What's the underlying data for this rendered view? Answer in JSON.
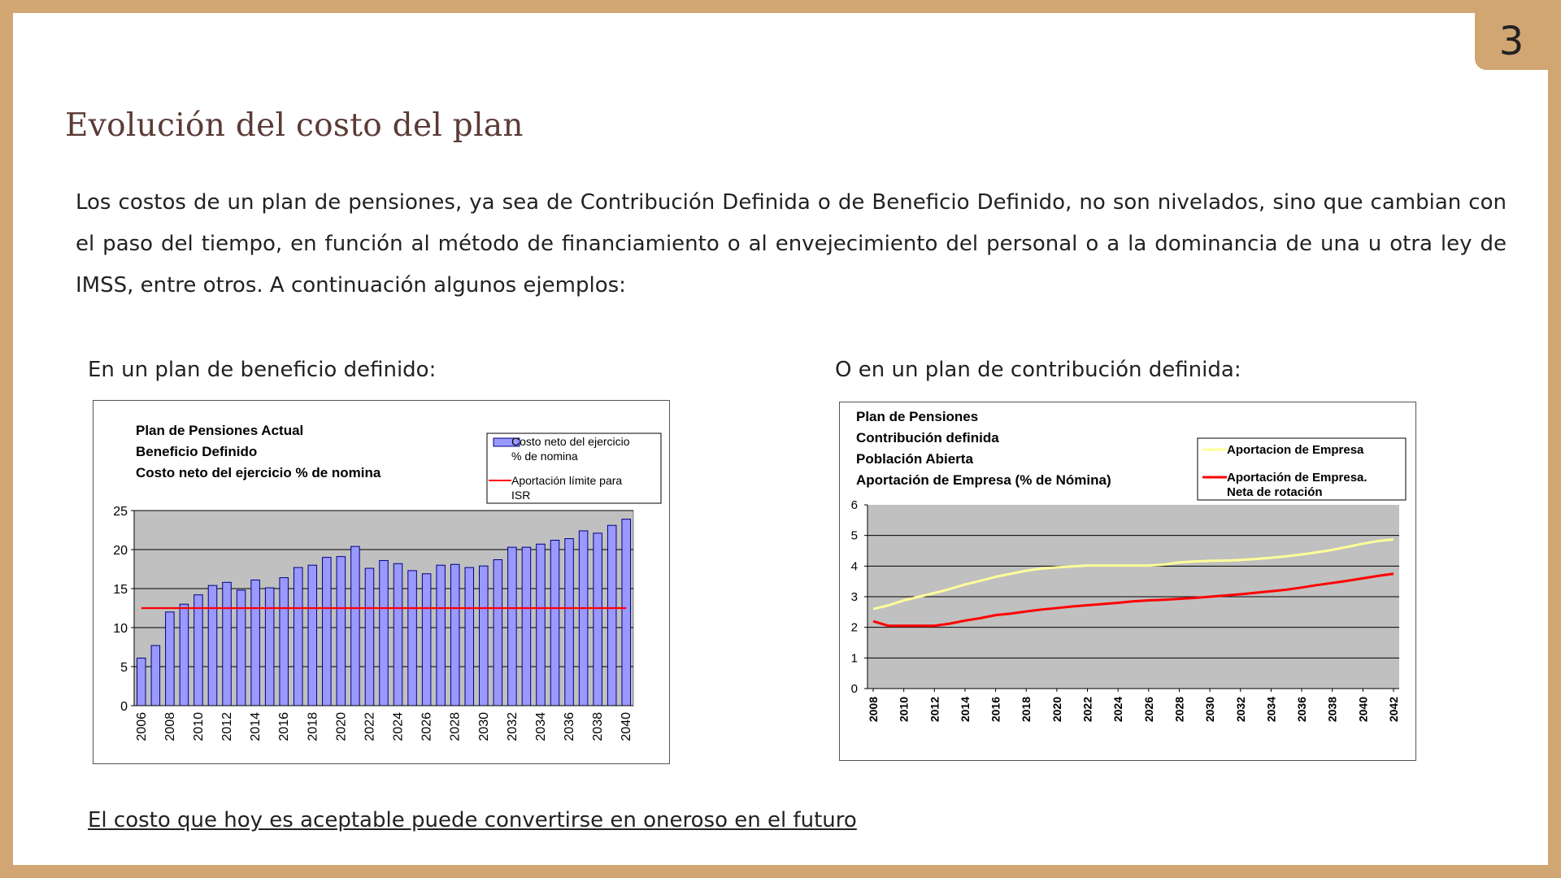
{
  "page_number": "3",
  "title": "Evolución del costo del plan",
  "intro": "Los costos de un plan de pensiones, ya sea de Contribución Definida o de Beneficio Definido, no son nivelados, sino que cambian con el paso del tiempo, en función al método de financiamiento o al envejecimiento del personal o a la dominancia de una u otra ley de IMSS, entre otros. A continuación algunos ejemplos:",
  "left_caption": "En un plan de beneficio definido:",
  "right_caption": "O en un plan de contribución definida:",
  "footer": "El costo que hoy es aceptable puede convertirse en oneroso en el futuro",
  "colors": {
    "frame": "#d1a673",
    "title": "#5b3b36",
    "plot_bg": "#c0c0c0",
    "bar_fill": "#9999ff",
    "bar_stroke": "#000080",
    "red_line": "#ff0000",
    "yellow_line": "#ffff99"
  },
  "chart_data": [
    {
      "type": "bar",
      "title_lines": [
        "Plan de Pensiones Actual",
        "Beneficio Definido",
        "Costo neto del ejercicio % de nomina"
      ],
      "legend": [
        "Costo neto del ejercicio % de nomina",
        "Aportación límite para ISR"
      ],
      "legend_placement": "top-right",
      "x": [
        2006,
        2007,
        2008,
        2009,
        2010,
        2011,
        2012,
        2013,
        2014,
        2015,
        2016,
        2017,
        2018,
        2019,
        2020,
        2021,
        2022,
        2023,
        2024,
        2025,
        2026,
        2027,
        2028,
        2029,
        2030,
        2031,
        2032,
        2033,
        2034,
        2035,
        2036,
        2037,
        2038,
        2039,
        2040
      ],
      "x_ticks": [
        "2006",
        "2008",
        "2010",
        "2012",
        "2014",
        "2016",
        "2018",
        "2020",
        "2022",
        "2024",
        "2026",
        "2028",
        "2030",
        "2032",
        "2034",
        "2036",
        "2038",
        "2040"
      ],
      "y_ticks": [
        "0",
        "5",
        "10",
        "15",
        "20",
        "25"
      ],
      "ylim": [
        0,
        25
      ],
      "grid": true,
      "series": [
        {
          "name": "Costo neto del ejercicio % de nomina",
          "kind": "bar",
          "values": [
            6.1,
            7.7,
            12.0,
            13.0,
            14.2,
            15.4,
            15.8,
            14.8,
            16.1,
            15.1,
            16.4,
            17.7,
            18.0,
            19.0,
            19.1,
            20.4,
            17.6,
            18.6,
            18.2,
            17.3,
            16.9,
            18.0,
            18.1,
            17.7,
            17.9,
            18.7,
            20.3,
            20.3,
            20.7,
            21.2,
            21.4,
            22.4,
            22.1,
            23.1,
            23.9
          ]
        },
        {
          "name": "Aportación límite para ISR",
          "kind": "line",
          "values": [
            12.5,
            12.5,
            12.5,
            12.5,
            12.5,
            12.5,
            12.5,
            12.5,
            12.5,
            12.5,
            12.5,
            12.5,
            12.5,
            12.5,
            12.5,
            12.5,
            12.5,
            12.5,
            12.5,
            12.5,
            12.5,
            12.5,
            12.5,
            12.5,
            12.5,
            12.5,
            12.5,
            12.5,
            12.5,
            12.5,
            12.5,
            12.5,
            12.5,
            12.5,
            12.5
          ]
        }
      ]
    },
    {
      "type": "line",
      "title_lines": [
        "Plan de Pensiones",
        "Contribución definida",
        "Población Abierta",
        "Aportación de Empresa (% de Nómina)"
      ],
      "legend": [
        "Aportacion de Empresa",
        "Aportación de Empresa.",
        "Neta de rotación"
      ],
      "legend_placement": "top-right",
      "x": [
        2008,
        2009,
        2010,
        2011,
        2012,
        2013,
        2014,
        2015,
        2016,
        2017,
        2018,
        2019,
        2020,
        2021,
        2022,
        2023,
        2024,
        2025,
        2026,
        2027,
        2028,
        2029,
        2030,
        2031,
        2032,
        2033,
        2034,
        2035,
        2036,
        2037,
        2038,
        2039,
        2040,
        2041,
        2042
      ],
      "x_ticks": [
        "2008",
        "2010",
        "2012",
        "2014",
        "2016",
        "2018",
        "2020",
        "2022",
        "2024",
        "2026",
        "2028",
        "2030",
        "2032",
        "2034",
        "2036",
        "2038",
        "2040",
        "2042"
      ],
      "y_ticks": [
        "0",
        "1",
        "2",
        "3",
        "4",
        "5",
        "6"
      ],
      "ylim": [
        0,
        6
      ],
      "grid": true,
      "series": [
        {
          "name": "Aportacion de Empresa",
          "values": [
            2.6,
            2.72,
            2.88,
            3.0,
            3.12,
            3.25,
            3.4,
            3.52,
            3.65,
            3.75,
            3.85,
            3.92,
            3.96,
            3.99,
            4.02,
            4.02,
            4.02,
            4.02,
            4.02,
            4.05,
            4.12,
            4.15,
            4.17,
            4.18,
            4.2,
            4.23,
            4.27,
            4.32,
            4.38,
            4.45,
            4.53,
            4.63,
            4.73,
            4.82,
            4.87
          ]
        },
        {
          "name": "Aportación de Empresa. Neta de rotación",
          "values": [
            2.2,
            2.05,
            2.05,
            2.05,
            2.05,
            2.12,
            2.22,
            2.3,
            2.4,
            2.45,
            2.52,
            2.58,
            2.63,
            2.68,
            2.72,
            2.76,
            2.8,
            2.85,
            2.88,
            2.9,
            2.93,
            2.96,
            3.0,
            3.04,
            3.08,
            3.13,
            3.18,
            3.23,
            3.3,
            3.38,
            3.45,
            3.52,
            3.6,
            3.68,
            3.75
          ]
        }
      ]
    }
  ]
}
